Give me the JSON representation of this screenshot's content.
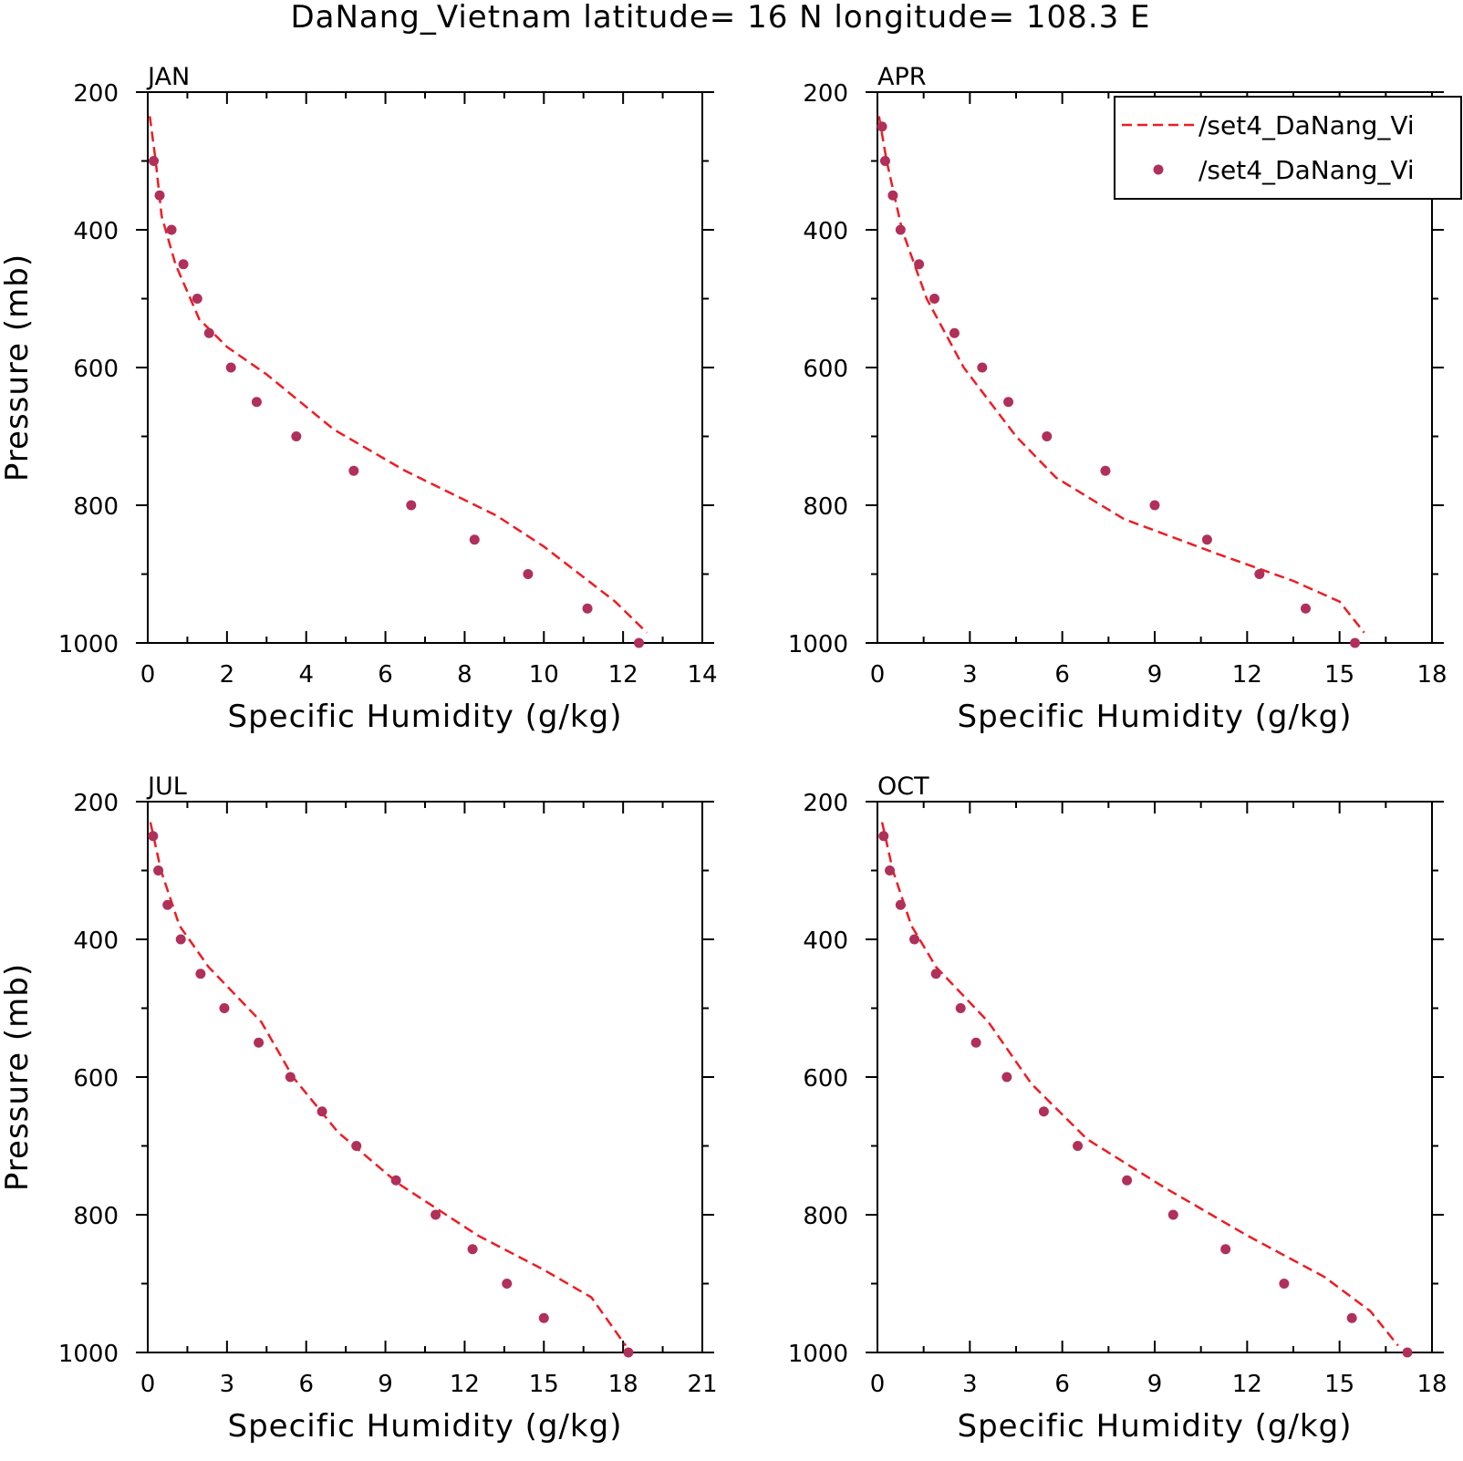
{
  "title": "DaNang_Vietnam   latitude= 16 N longitude= 108.3 E",
  "legend": {
    "entries": [
      {
        "label": "/set4_DaNang_Vi",
        "style": "dashed-line",
        "color": "#ee1c24"
      },
      {
        "label": "/set4_DaNang_Vi",
        "style": "dots",
        "color": "#b0305a"
      }
    ]
  },
  "colors": {
    "model_line": "#ee1c24",
    "obs_dots": "#b0305a",
    "axis": "#000000"
  },
  "chart_data": [
    {
      "type": "line",
      "panel": "JAN",
      "xlabel": "Specific Humidity (g/kg)",
      "ylabel": "Pressure (mb)",
      "xlim": [
        0,
        14
      ],
      "ylim": [
        1000,
        200
      ],
      "y_inverted": true,
      "xticks": [
        "0",
        "2",
        "4",
        "6",
        "8",
        "10",
        "12",
        "14"
      ],
      "yticks": [
        "200",
        "400",
        "600",
        "800",
        "1000"
      ],
      "series": [
        {
          "style": "dashed-line",
          "x": [
            0.05,
            0.2,
            0.35,
            0.7,
            1.3,
            2.0,
            3.0,
            4.7,
            6.5,
            8.8,
            10.0,
            11.8,
            12.6
          ],
          "y": [
            235,
            300,
            380,
            450,
            530,
            570,
            610,
            690,
            750,
            815,
            860,
            940,
            985
          ]
        },
        {
          "style": "dots",
          "x": [
            0.15,
            0.3,
            0.6,
            0.9,
            1.25,
            1.55,
            2.1,
            2.75,
            3.75,
            5.2,
            6.65,
            8.25,
            9.6,
            11.1,
            12.4
          ],
          "y": [
            300,
            350,
            400,
            450,
            500,
            550,
            600,
            650,
            700,
            750,
            800,
            850,
            900,
            950,
            1000
          ]
        }
      ]
    },
    {
      "type": "line",
      "panel": "APR",
      "xlabel": "Specific Humidity (g/kg)",
      "ylabel": "",
      "xlim": [
        0,
        18
      ],
      "ylim": [
        1000,
        200
      ],
      "y_inverted": true,
      "xticks": [
        "0",
        "3",
        "6",
        "9",
        "12",
        "15",
        "18"
      ],
      "yticks": [
        "200",
        "400",
        "600",
        "800",
        "1000"
      ],
      "series": [
        {
          "style": "dashed-line",
          "x": [
            0.05,
            0.3,
            0.8,
            1.6,
            2.8,
            4.5,
            5.8,
            8.0,
            11.0,
            13.5,
            15.0,
            15.8
          ],
          "y": [
            235,
            300,
            400,
            500,
            600,
            700,
            760,
            820,
            870,
            910,
            940,
            985
          ]
        },
        {
          "style": "dots",
          "x": [
            0.15,
            0.25,
            0.5,
            0.75,
            1.35,
            1.85,
            2.5,
            3.4,
            4.25,
            5.5,
            7.4,
            9.0,
            10.7,
            12.4,
            13.9,
            15.5
          ],
          "y": [
            250,
            300,
            350,
            400,
            450,
            500,
            550,
            600,
            650,
            700,
            750,
            800,
            850,
            900,
            950,
            1000
          ]
        }
      ]
    },
    {
      "type": "line",
      "panel": "JUL",
      "xlabel": "Specific Humidity (g/kg)",
      "ylabel": "Pressure (mb)",
      "xlim": [
        0,
        21
      ],
      "ylim": [
        1000,
        200
      ],
      "y_inverted": true,
      "xticks": [
        "0",
        "3",
        "6",
        "9",
        "12",
        "15",
        "18",
        "21"
      ],
      "yticks": [
        "200",
        "400",
        "600",
        "800",
        "1000"
      ],
      "series": [
        {
          "style": "dashed-line",
          "x": [
            0.1,
            0.5,
            1.2,
            2.3,
            4.3,
            5.5,
            7.2,
            9.5,
            12.5,
            15.0,
            16.8,
            18.1
          ],
          "y": [
            230,
            300,
            380,
            440,
            520,
            600,
            680,
            755,
            830,
            880,
            920,
            990
          ]
        },
        {
          "style": "dots",
          "x": [
            0.2,
            0.4,
            0.75,
            1.25,
            2.0,
            2.9,
            4.2,
            5.4,
            6.6,
            7.9,
            9.4,
            10.9,
            12.3,
            13.6,
            15.0,
            18.2
          ],
          "y": [
            250,
            300,
            350,
            400,
            450,
            500,
            550,
            600,
            650,
            700,
            750,
            800,
            850,
            900,
            950,
            1000
          ]
        }
      ]
    },
    {
      "type": "line",
      "panel": "OCT",
      "xlabel": "Specific Humidity (g/kg)",
      "ylabel": "",
      "xlim": [
        0,
        18
      ],
      "ylim": [
        1000,
        200
      ],
      "y_inverted": true,
      "xticks": [
        "0",
        "3",
        "6",
        "9",
        "12",
        "15",
        "18"
      ],
      "yticks": [
        "200",
        "400",
        "600",
        "800",
        "1000"
      ],
      "series": [
        {
          "style": "dashed-line",
          "x": [
            0.15,
            0.5,
            1.1,
            1.9,
            3.6,
            5.0,
            6.8,
            9.3,
            12.0,
            14.5,
            16.0,
            16.9
          ],
          "y": [
            230,
            300,
            380,
            440,
            520,
            610,
            690,
            760,
            830,
            890,
            940,
            990
          ]
        },
        {
          "style": "dots",
          "x": [
            0.2,
            0.4,
            0.75,
            1.2,
            1.9,
            2.7,
            3.2,
            4.2,
            5.4,
            6.5,
            8.1,
            9.6,
            11.3,
            13.2,
            15.4,
            17.2
          ],
          "y": [
            250,
            300,
            350,
            400,
            450,
            500,
            550,
            600,
            650,
            700,
            750,
            800,
            850,
            900,
            950,
            1000
          ]
        }
      ]
    }
  ]
}
